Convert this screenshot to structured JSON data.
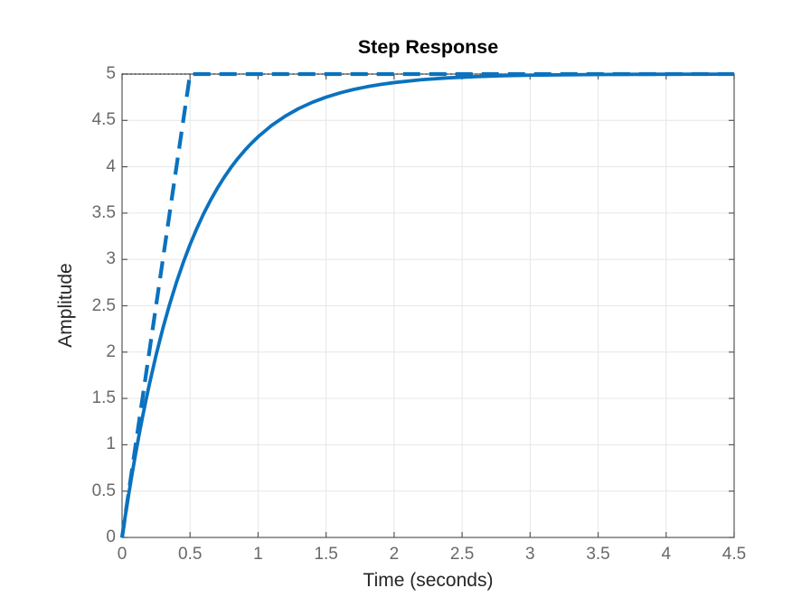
{
  "figure": {
    "background": "#ffffff"
  },
  "chart_data": {
    "type": "line",
    "title": "Step Response",
    "xlabel": "Time (seconds)",
    "ylabel": "Amplitude",
    "xlim": [
      0,
      4.5
    ],
    "ylim": [
      0,
      5
    ],
    "grid": true,
    "legend_position": "none",
    "xticks": [
      0,
      0.5,
      1,
      1.5,
      2,
      2.5,
      3,
      3.5,
      4,
      4.5
    ],
    "xtick_labels": [
      "0",
      "0.5",
      "1",
      "1.5",
      "2",
      "2.5",
      "3",
      "3.5",
      "4",
      "4.5"
    ],
    "yticks": [
      0,
      0.5,
      1,
      1.5,
      2,
      2.5,
      3,
      3.5,
      4,
      4.5,
      5
    ],
    "ytick_labels": [
      "0",
      "0.5",
      "1",
      "1.5",
      "2",
      "2.5",
      "3",
      "3.5",
      "4",
      "4.5",
      "5"
    ],
    "colors": {
      "series_blue": "#0a72bf",
      "steady_state_line": "#2e2e2e",
      "grid": "#e6e6e6",
      "axis_box": "#575757",
      "tick_label": "#696969",
      "axis_label": "#262626",
      "title": "#000000"
    },
    "series": [
      {
        "name": "steady-state-line",
        "style": "dotted",
        "color": "#2e2e2e",
        "width": 1.3,
        "points": [
          [
            0,
            5
          ],
          [
            4.5,
            5
          ]
        ]
      },
      {
        "name": "step-response-curve",
        "style": "solid",
        "color": "#0a72bf",
        "width": 3.8,
        "points": [
          [
            0,
            0
          ],
          [
            0.0125,
            0.123
          ],
          [
            0.025,
            0.244
          ],
          [
            0.0375,
            0.361
          ],
          [
            0.05,
            0.476
          ],
          [
            0.075,
            0.696
          ],
          [
            0.1,
            0.906
          ],
          [
            0.125,
            1.106
          ],
          [
            0.15,
            1.296
          ],
          [
            0.175,
            1.477
          ],
          [
            0.2,
            1.648
          ],
          [
            0.25,
            1.967
          ],
          [
            0.3,
            2.256
          ],
          [
            0.35,
            2.517
          ],
          [
            0.4,
            2.753
          ],
          [
            0.45,
            2.967
          ],
          [
            0.5,
            3.161
          ],
          [
            0.55,
            3.335
          ],
          [
            0.6,
            3.494
          ],
          [
            0.65,
            3.637
          ],
          [
            0.7,
            3.767
          ],
          [
            0.75,
            3.884
          ],
          [
            0.8,
            3.991
          ],
          [
            0.85,
            4.087
          ],
          [
            0.9,
            4.173
          ],
          [
            0.95,
            4.252
          ],
          [
            1,
            4.323
          ],
          [
            1.1,
            4.446
          ],
          [
            1.2,
            4.546
          ],
          [
            1.3,
            4.629
          ],
          [
            1.4,
            4.696
          ],
          [
            1.5,
            4.751
          ],
          [
            1.6,
            4.796
          ],
          [
            1.7,
            4.833
          ],
          [
            1.8,
            4.863
          ],
          [
            1.9,
            4.888
          ],
          [
            2,
            4.908
          ],
          [
            2.2,
            4.939
          ],
          [
            2.4,
            4.959
          ],
          [
            2.6,
            4.972
          ],
          [
            2.8,
            4.982
          ],
          [
            3,
            4.988
          ],
          [
            3.25,
            4.992
          ],
          [
            3.5,
            4.995
          ],
          [
            3.75,
            4.997
          ],
          [
            4,
            4.998
          ],
          [
            4.25,
            4.999
          ],
          [
            4.5,
            4.999
          ]
        ]
      },
      {
        "name": "initial-slope-tangent",
        "style": "dashed",
        "color": "#0a72bf",
        "width": 4.2,
        "points": [
          [
            0,
            0
          ],
          [
            0.5,
            5
          ],
          [
            4.5,
            5
          ]
        ]
      }
    ]
  }
}
